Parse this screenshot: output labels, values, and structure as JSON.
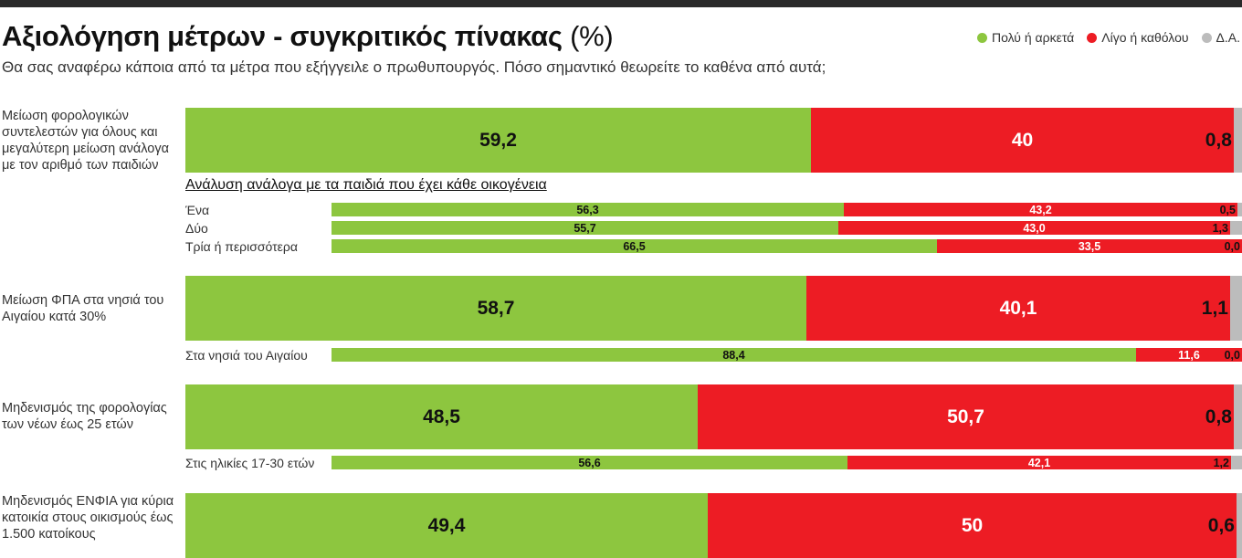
{
  "header": {
    "title": "Αξιολόγηση μέτρων - συγκριτικός πίνακας",
    "title_unit": "(%)",
    "subtitle": "Θα σας αναφέρω κάποια από τα μέτρα που εξήγγειλε ο πρωθυπουργός. Πόσο σημαντικό θεωρείτε το καθένα από αυτά;"
  },
  "colors": {
    "green": "#8dc63f",
    "red": "#ed1c24",
    "gray": "#bcbcbc"
  },
  "chart_data": {
    "type": "bar",
    "orientation": "horizontal",
    "stacked": true,
    "percent_scale": [
      0,
      100
    ],
    "legend": [
      {
        "name": "Πολύ ή αρκετά",
        "color": "#8dc63f"
      },
      {
        "name": "Λίγο ή καθόλου",
        "color": "#ed1c24"
      },
      {
        "name": "Δ.Α.",
        "color": "#bcbcbc"
      }
    ],
    "legend_position": "top-right",
    "breakdown_heading": "Ανάλυση ανάλογα με τα παιδιά που έχει κάθε οικογένεια",
    "main_bars": [
      {
        "label": "Μείωση φορολογικών συντελεστών για όλους και μεγαλύτερη μείωση ανάλογα με τον αριθμό των παιδιών",
        "values": [
          59.2,
          40,
          0.8
        ],
        "value_labels": [
          "59,2",
          "40",
          "0,8"
        ]
      },
      {
        "label": "Μείωση ΦΠΑ στα νησιά του Αιγαίου κατά 30%",
        "values": [
          58.7,
          40.1,
          1.1
        ],
        "value_labels": [
          "58,7",
          "40,1",
          "1,1"
        ]
      },
      {
        "label": "Μηδενισμός της φορολογίας των νέων έως 25 ετών",
        "values": [
          48.5,
          50.7,
          0.8
        ],
        "value_labels": [
          "48,5",
          "50,7",
          "0,8"
        ]
      },
      {
        "label": "Μηδενισμός ΕΝΦΙΑ για κύρια κατοικία στους οικισμούς έως 1.500 κατοίκους",
        "values": [
          49.4,
          50,
          0.6
        ],
        "value_labels": [
          "49,4",
          "50",
          "0,6"
        ]
      }
    ],
    "sub_bars": [
      {
        "label": "Ένα",
        "values": [
          56.3,
          43.2,
          0.5
        ],
        "value_labels": [
          "56,3",
          "43,2",
          "0,5"
        ]
      },
      {
        "label": "Δύο",
        "values": [
          55.7,
          43.0,
          1.3
        ],
        "value_labels": [
          "55,7",
          "43,0",
          "1,3"
        ]
      },
      {
        "label": "Τρία ή περισσότερα",
        "values": [
          66.5,
          33.5,
          0.0
        ],
        "value_labels": [
          "66,5",
          "33,5",
          "0,0"
        ]
      },
      {
        "label": "Στα νησιά του Αιγαίου",
        "values": [
          88.4,
          11.6,
          0.0
        ],
        "value_labels": [
          "88,4",
          "11,6",
          "0,0"
        ]
      },
      {
        "label": "Στις ηλικίες 17-30 ετών",
        "values": [
          56.6,
          42.1,
          1.2
        ],
        "value_labels": [
          "56,6",
          "42,1",
          "1,2"
        ]
      }
    ]
  }
}
